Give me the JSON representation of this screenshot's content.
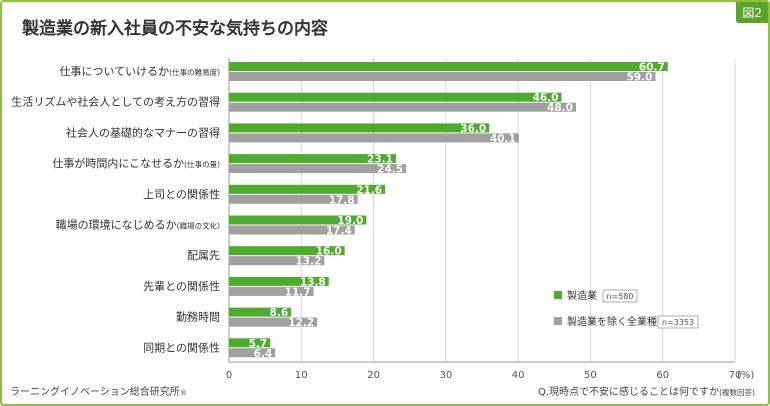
{
  "figure_label": "図2",
  "title": "製造業の新入社員の不安な気持ちの内容",
  "source": "ラーニングイノベーション総合研究所",
  "source_mark": "®",
  "question_main": "Q.現時点で不安に感じることは何ですか",
  "question_note": "(複数回答)",
  "colors": {
    "series1": "#4fab2e",
    "series2": "#a0a0a0",
    "frame": "#8dc23f"
  },
  "chart_data": {
    "type": "bar",
    "orientation": "horizontal",
    "categories": [
      {
        "main": "仕事についていけるか",
        "sub": "(仕事の難易度)"
      },
      {
        "main": "生活リズムや社会人としての考え方の習得",
        "sub": ""
      },
      {
        "main": "社会人の基礎的なマナーの習得",
        "sub": ""
      },
      {
        "main": "仕事が時間内にこなせるか",
        "sub": "(仕事の量)"
      },
      {
        "main": "上司との関係性",
        "sub": ""
      },
      {
        "main": "職場の環境になじめるか",
        "sub": "(職場の文化)"
      },
      {
        "main": "配属先",
        "sub": ""
      },
      {
        "main": "先輩との関係性",
        "sub": ""
      },
      {
        "main": "勤務時間",
        "sub": ""
      },
      {
        "main": "同期との関係性",
        "sub": ""
      }
    ],
    "series": [
      {
        "name": "製造業",
        "n": "n=580",
        "values": [
          60.7,
          46.0,
          36.0,
          23.1,
          21.6,
          19.0,
          16.0,
          13.8,
          8.6,
          5.7
        ]
      },
      {
        "name": "製造業を除く全業種",
        "n": "n=3353",
        "values": [
          59.0,
          48.0,
          40.1,
          24.5,
          17.8,
          17.4,
          13.2,
          11.7,
          12.2,
          6.4
        ]
      }
    ],
    "xlim": [
      0,
      70
    ],
    "xticks": [
      "0",
      "10",
      "20",
      "30",
      "40",
      "50",
      "60",
      "70"
    ],
    "xunit": "(%)",
    "legend_position": "bottom-right"
  }
}
